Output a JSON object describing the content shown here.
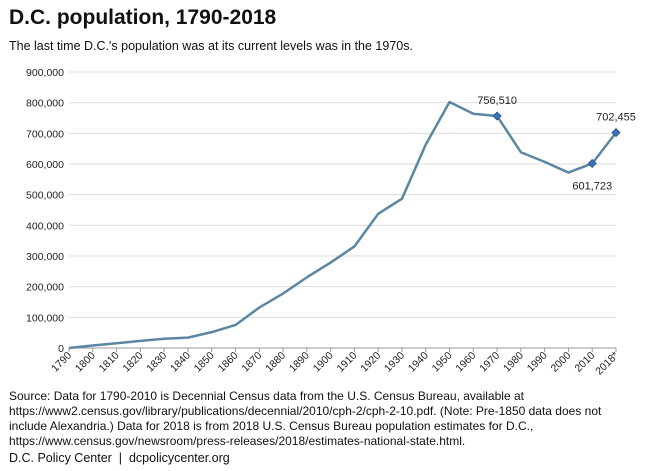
{
  "header": {
    "title": "D.C. population, 1790-2018",
    "subtitle": "The last time D.C.'s population was at its current levels was in the 1970s."
  },
  "source": "Source: Data for 1790-2010 is Decennial Census data from the U.S. Census Bureau, available at https://www2.census.gov/library/publications/decennial/2010/cph-2/cph-2-10.pdf. (Note: Pre-1850 data does not include Alexandria.) Data for 2018 is from 2018 U.S. Census Bureau population estimates for D.C., https://www.census.gov/newsroom/press-releases/2018/estimates-national-state.html.",
  "footer": {
    "org": "D.C. Policy Center",
    "separator": "|",
    "url": "dcpolicycenter.org"
  },
  "colors": {
    "line": "#5b87a2",
    "marker": "#3b73b9",
    "grid": "#dddddd",
    "axis": "#999999"
  },
  "chart_data": {
    "type": "line",
    "title": "D.C. population, 1790-2018",
    "xlabel": "",
    "ylabel": "",
    "ylim": [
      0,
      900000
    ],
    "y_ticks": [
      "0",
      "100,000",
      "200,000",
      "300,000",
      "400,000",
      "500,000",
      "600,000",
      "700,000",
      "800,000",
      "900,000"
    ],
    "categories": [
      "1790",
      "1800",
      "1810",
      "1820",
      "1830",
      "1840",
      "1850",
      "1860",
      "1870",
      "1880",
      "1890",
      "1900",
      "1910",
      "1920",
      "1930",
      "1940",
      "1950",
      "1960",
      "1970",
      "1980",
      "1990",
      "2000",
      "2010",
      "2018*"
    ],
    "values": [
      0,
      8144,
      15471,
      23336,
      30261,
      33745,
      51687,
      75080,
      131700,
      177624,
      230392,
      278718,
      331069,
      437571,
      486869,
      663091,
      802178,
      763956,
      756510,
      638333,
      606900,
      572059,
      601723,
      702455
    ],
    "grid": true,
    "legend": "none",
    "annotations": [
      {
        "index": 18,
        "label": "756,510",
        "position": "above"
      },
      {
        "index": 22,
        "label": "601,723",
        "position": "below"
      },
      {
        "index": 23,
        "label": "702,455",
        "position": "above"
      }
    ]
  }
}
